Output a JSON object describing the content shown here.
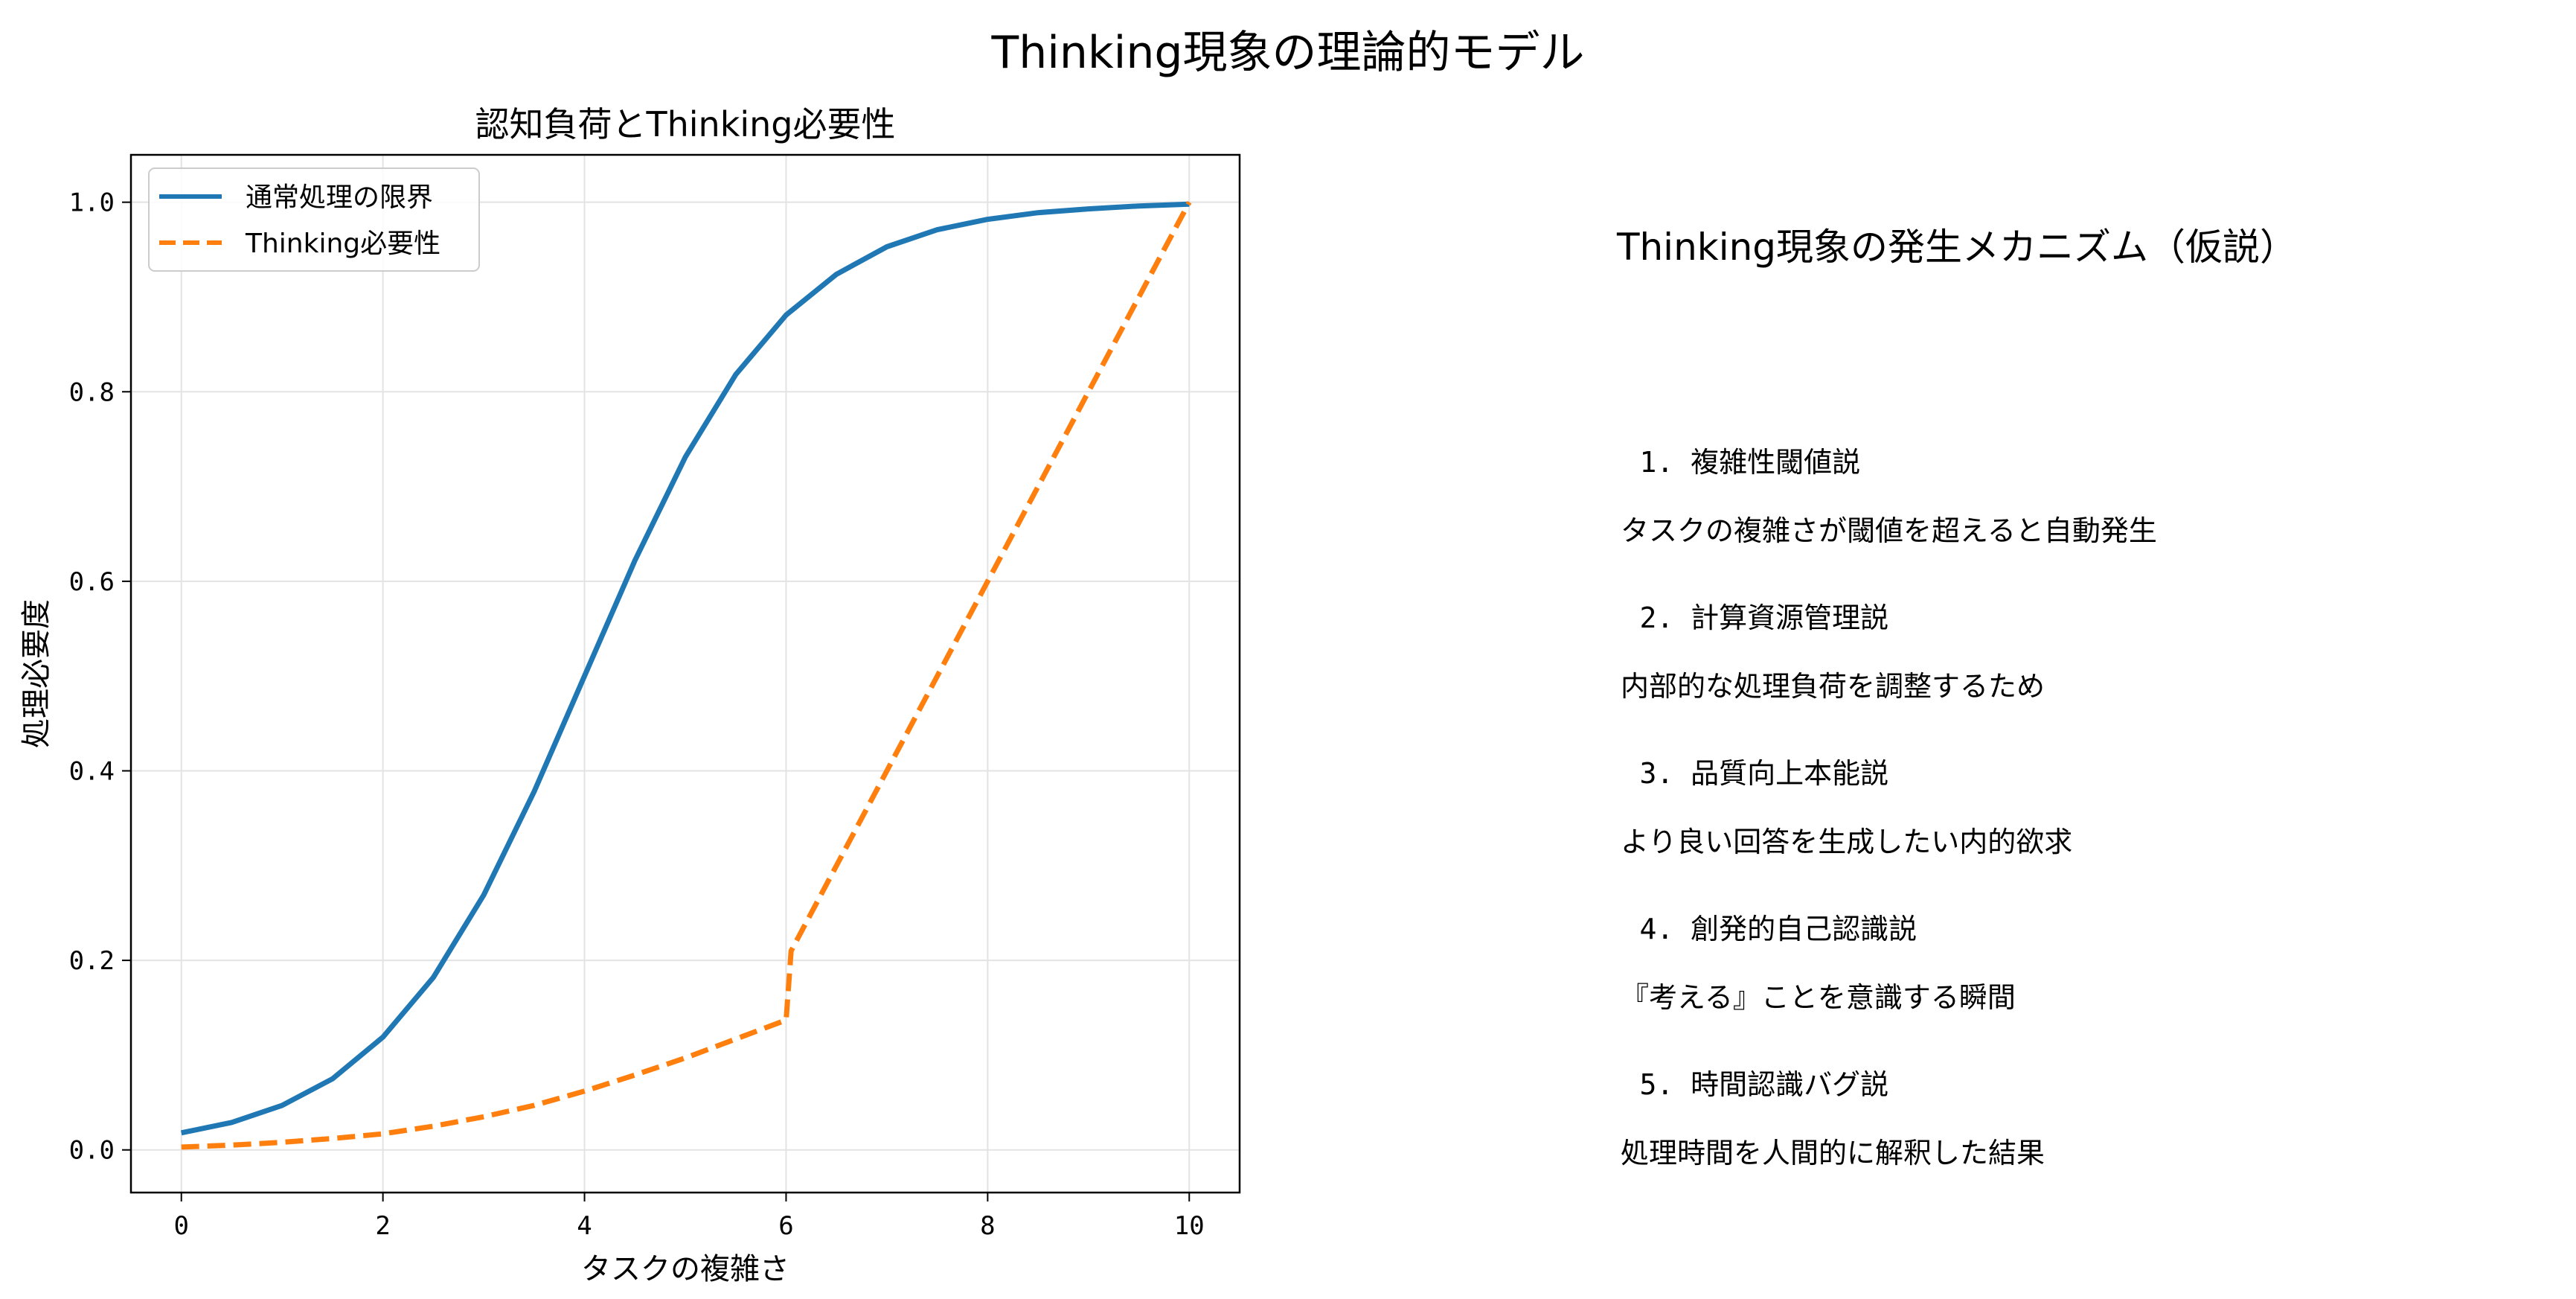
{
  "figure": {
    "title": "Thinking現象の理論的モデル"
  },
  "chart_data": {
    "type": "line",
    "title": "認知負荷とThinking必要性",
    "xlabel": "タスクの複雑さ",
    "ylabel": "処理必要度",
    "xlim": [
      -0.5,
      10.5
    ],
    "ylim": [
      -0.045,
      1.05
    ],
    "xticks": [
      0,
      2,
      4,
      6,
      8,
      10
    ],
    "xtick_labels": [
      "0",
      "2",
      "4",
      "6",
      "8",
      "10"
    ],
    "yticks": [
      0.0,
      0.2,
      0.4,
      0.6,
      0.8,
      1.0
    ],
    "ytick_labels": [
      "0.0",
      "0.2",
      "0.4",
      "0.6",
      "0.8",
      "1.0"
    ],
    "grid": true,
    "legend_position": "top-left",
    "series": [
      {
        "name": "通常処理の限界",
        "style": "solid",
        "color": "#1f77b4",
        "x": [
          0,
          0.5,
          1,
          1.5,
          2,
          2.5,
          3,
          3.5,
          4,
          4.5,
          5,
          5.5,
          6,
          6.5,
          7,
          7.5,
          8,
          8.5,
          9,
          9.5,
          10
        ],
        "y": [
          0.018,
          0.029,
          0.047,
          0.075,
          0.119,
          0.182,
          0.269,
          0.378,
          0.5,
          0.622,
          0.731,
          0.818,
          0.881,
          0.924,
          0.953,
          0.971,
          0.982,
          0.989,
          0.993,
          0.996,
          0.998
        ]
      },
      {
        "name": "Thinking必要性",
        "style": "dashed",
        "color": "#ff7f0e",
        "x": [
          0,
          0.5,
          1,
          1.5,
          2,
          2.5,
          3,
          3.5,
          4,
          4.5,
          5,
          5.5,
          6,
          6.05,
          7,
          8,
          9,
          10
        ],
        "y": [
          0.003,
          0.005,
          0.008,
          0.012,
          0.017,
          0.025,
          0.035,
          0.047,
          0.062,
          0.079,
          0.097,
          0.117,
          0.137,
          0.21,
          0.4,
          0.6,
          0.8,
          1.0
        ]
      }
    ]
  },
  "hypotheses": {
    "title": "Thinking現象の発生メカニズム（仮説）",
    "items": [
      {
        "head": "1. 複雑性閾値説",
        "desc": "タスクの複雑さが閾値を超えると自動発生"
      },
      {
        "head": "2. 計算資源管理説",
        "desc": "内部的な処理負荷を調整するため"
      },
      {
        "head": "3. 品質向上本能説",
        "desc": "より良い回答を生成したい内的欲求"
      },
      {
        "head": "4. 創発的自己認識説",
        "desc": "『考える』ことを意識する瞬間"
      },
      {
        "head": "5. 時間認識バグ説",
        "desc": "処理時間を人間的に解釈した結果"
      }
    ]
  }
}
